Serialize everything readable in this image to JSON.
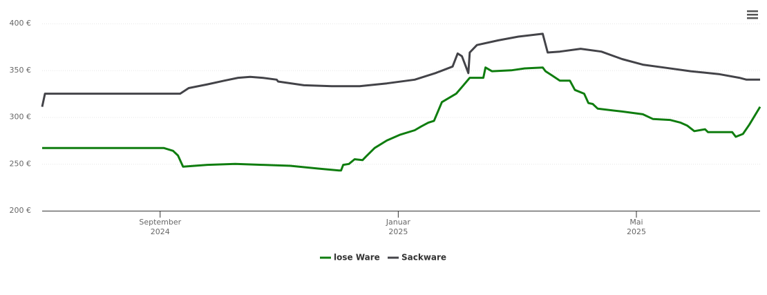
{
  "chart_data": {
    "type": "line",
    "xlim": [
      2024.502,
      2025.506
    ],
    "xticks": [
      {
        "value": 2024.667,
        "label": [
          "September",
          "2024"
        ]
      },
      {
        "value": 2025.0,
        "label": [
          "Januar",
          "2025"
        ]
      },
      {
        "value": 2025.333,
        "label": [
          "Mai",
          "2025"
        ]
      }
    ],
    "ylim": [
      200,
      400
    ],
    "yticks": [
      {
        "value": 200,
        "label": "200 €"
      },
      {
        "value": 250,
        "label": "250 €"
      },
      {
        "value": 300,
        "label": "300 €"
      },
      {
        "value": 350,
        "label": "350 €"
      },
      {
        "value": 400,
        "label": "400 €"
      }
    ],
    "grid": true,
    "legend": "bottom",
    "series": [
      {
        "name": "lose Ware",
        "color": "#0f7d0f",
        "x": [
          2024.502,
          2024.672,
          2024.685,
          2024.692,
          2024.699,
          2024.733,
          2024.772,
          2024.81,
          2024.849,
          2024.888,
          2024.917,
          2024.92,
          2024.923,
          2024.931,
          2024.939,
          2024.95,
          2024.955,
          2024.967,
          2024.984,
          2025.002,
          2025.023,
          2025.032,
          2025.042,
          2025.05,
          2025.061,
          2025.081,
          2025.09,
          2025.1,
          2025.119,
          2025.122,
          2025.131,
          2025.158,
          2025.177,
          2025.202,
          2025.206,
          2025.216,
          2025.226,
          2025.24,
          2025.247,
          2025.26,
          2025.266,
          2025.272,
          2025.279,
          2025.313,
          2025.342,
          2025.356,
          2025.38,
          2025.395,
          2025.404,
          2025.414,
          2025.429,
          2025.433,
          2025.467,
          2025.472,
          2025.482,
          2025.491,
          2025.506
        ],
        "values": [
          267,
          267,
          264,
          259,
          247,
          249,
          250,
          249,
          248,
          245,
          243,
          243,
          249,
          250,
          255,
          254,
          258,
          267,
          275,
          281,
          286,
          290,
          294,
          296,
          316,
          325,
          333,
          342,
          342,
          353,
          349,
          350,
          352,
          353,
          349,
          344,
          339,
          339,
          329,
          325,
          315,
          314,
          309,
          306,
          303,
          298,
          297,
          294,
          291,
          285,
          287,
          284,
          284,
          279,
          282,
          292,
          311
        ]
      },
      {
        "name": "Sackware",
        "color": "#434348",
        "x": [
          2024.502,
          2024.506,
          2024.695,
          2024.707,
          2024.733,
          2024.757,
          2024.776,
          2024.793,
          2024.81,
          2024.83,
          2024.832,
          2024.868,
          2024.907,
          2024.946,
          2024.984,
          2025.023,
          2025.052,
          2025.076,
          2025.083,
          2025.089,
          2025.098,
          2025.1,
          2025.11,
          2025.14,
          2025.168,
          2025.202,
          2025.209,
          2025.226,
          2025.255,
          2025.284,
          2025.313,
          2025.342,
          2025.371,
          2025.409,
          2025.448,
          2025.477,
          2025.487,
          2025.506
        ],
        "values": [
          311,
          325,
          325,
          331,
          335,
          339,
          342,
          343,
          342,
          340,
          338,
          334,
          333,
          333,
          336,
          340,
          347,
          354,
          368,
          365,
          347,
          369,
          377,
          382,
          386,
          389,
          369,
          370,
          373,
          370,
          362,
          356,
          353,
          349,
          346,
          342,
          340,
          340
        ]
      }
    ]
  }
}
